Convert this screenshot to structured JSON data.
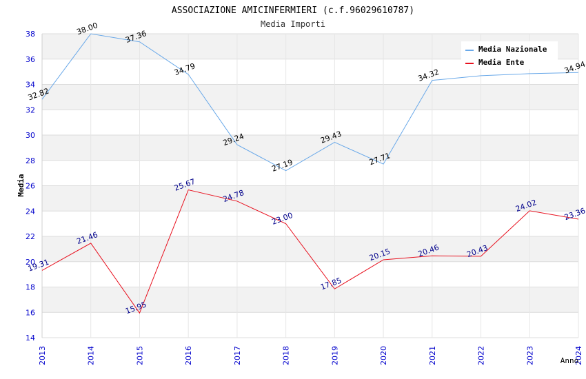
{
  "chart_data": {
    "type": "line",
    "title": "ASSOCIAZIONE AMICINFERMIERI (c.f.96029610787)",
    "subtitle": "Media Importi",
    "xlabel": "Anno",
    "ylabel": "Media",
    "x": [
      "2013",
      "2014",
      "2015",
      "2016",
      "2017",
      "2018",
      "2019",
      "2020",
      "2021",
      "2022",
      "2023",
      "2024"
    ],
    "ylim": [
      14,
      38
    ],
    "yticks": [
      "14",
      "16",
      "18",
      "20",
      "22",
      "24",
      "26",
      "28",
      "30",
      "32",
      "34",
      "36",
      "38"
    ],
    "grid": true,
    "legend_position": "top-right",
    "series": [
      {
        "name": "Media Nazionale",
        "color": "#6aa9e9",
        "label_color": "#000000",
        "values": [
          32.82,
          38.0,
          37.36,
          34.79,
          29.24,
          27.19,
          29.43,
          27.71,
          34.32,
          34.69,
          34.85,
          34.94
        ],
        "labels": [
          "32.82",
          "38.00",
          "37.36",
          "34.79",
          "29.24",
          "27.19",
          "29.43",
          "27.71",
          "34.32",
          "",
          "",
          "34.94"
        ]
      },
      {
        "name": "Media Ente",
        "color": "#e8101e",
        "label_color": "#00008b",
        "values": [
          19.31,
          21.46,
          15.95,
          25.67,
          24.78,
          23.0,
          17.85,
          20.15,
          20.46,
          20.43,
          24.02,
          23.36
        ],
        "labels": [
          "19.31",
          "21.46",
          "15.95",
          "25.67",
          "24.78",
          "23.00",
          "17.85",
          "20.15",
          "20.46",
          "20.43",
          "24.02",
          "23.36"
        ]
      }
    ]
  }
}
